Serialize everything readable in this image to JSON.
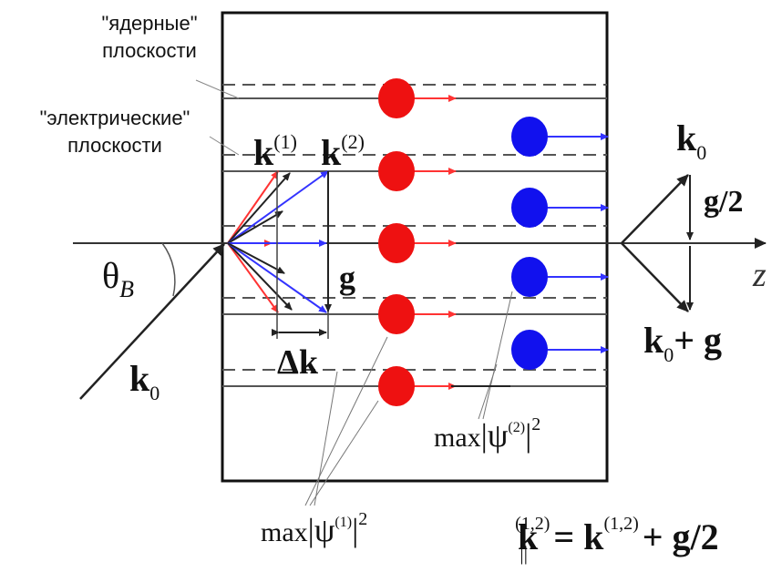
{
  "labels": {
    "nuclear_planes_line1": "\"ядерные\"",
    "nuclear_planes_line2": "плоскости",
    "electric_planes_line1": "\"электрические\"",
    "electric_planes_line2": "плоскости",
    "k1_main": "k",
    "k1_sup": "(1)",
    "k2_main": "k",
    "k2_sup": "(2)",
    "k0_top_main": "k",
    "k0_top_sub": "0",
    "g_half": "g/2",
    "z_axis": "z",
    "theta_main": "θ",
    "theta_sub": "B",
    "g_label": "g",
    "delta_k": "Δk",
    "k0_bottom_main": "k",
    "k0_bottom_sub": "0",
    "k0g_main": "k",
    "k0g_sub": "0",
    "k0g_rest": "+ g",
    "max_psi2_pre": "max",
    "max_psi2_psi": "|ψ",
    "max_psi2_sup": "(2)",
    "max_psi2_post": "|",
    "max_psi2_exp": "2",
    "max_psi1_pre": "max",
    "max_psi1_psi": "|ψ",
    "max_psi1_sup": "(1)",
    "max_psi1_post": "|",
    "max_psi1_exp": "2",
    "formula_k": "k",
    "formula_sub": "||",
    "formula_sup": "(1,2)",
    "formula_eq": "= k",
    "formula_sup2": "(1,2)",
    "formula_rest": "+ g/2"
  },
  "colors": {
    "red_wave": "#ee1111",
    "blue_wave": "#1111ee",
    "red_arrow": "#ff3333",
    "blue_arrow": "#3333ff",
    "line": "#333333"
  }
}
